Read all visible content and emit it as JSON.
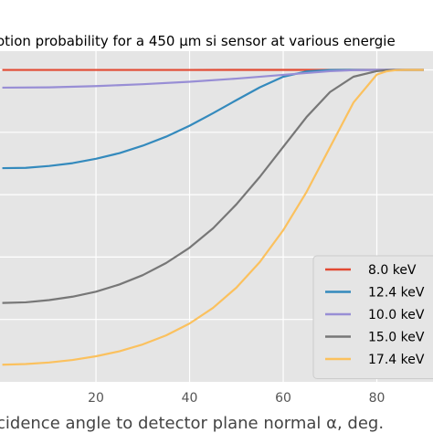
{
  "chart_data": {
    "type": "line",
    "title": "otion probability for a 450 µm si sensor at various energie",
    "xlabel": "cidence angle to detector plane normal α, deg.",
    "ylabel": "",
    "xlim": [
      -0.5,
      92
    ],
    "ylim": [
      0,
      1.06
    ],
    "grid": true,
    "legend_position": "bottom-right",
    "xticks": [
      20,
      40,
      60,
      80
    ],
    "xtick_labels": [
      "20",
      "40",
      "60",
      "80"
    ],
    "series": [
      {
        "name": "8.0 keV",
        "color": "#e24a33",
        "x": [
          0,
          10,
          20,
          30,
          40,
          50,
          60,
          70,
          80,
          85,
          90
        ],
        "y": [
          0.9998,
          0.9998,
          0.9998,
          0.9998,
          0.9998,
          0.9999,
          1.0,
          1.0,
          1.0,
          1.0,
          1.0
        ]
      },
      {
        "name": "12.4 keV",
        "color": "#348abd",
        "x": [
          0,
          5,
          10,
          15,
          20,
          25,
          30,
          35,
          40,
          45,
          50,
          55,
          60,
          65,
          70,
          75,
          80,
          85,
          90
        ],
        "y": [
          0.685,
          0.686,
          0.692,
          0.701,
          0.715,
          0.733,
          0.757,
          0.786,
          0.821,
          0.861,
          0.903,
          0.944,
          0.978,
          0.995,
          0.9995,
          1.0,
          1.0,
          1.0,
          1.0
        ]
      },
      {
        "name": "10.0 keV",
        "color": "#988ed5",
        "x": [
          0,
          10,
          20,
          30,
          40,
          50,
          60,
          65,
          70,
          75,
          80,
          85,
          90
        ],
        "y": [
          0.943,
          0.944,
          0.948,
          0.954,
          0.962,
          0.972,
          0.984,
          0.99,
          0.996,
          0.999,
          1.0,
          1.0,
          1.0
        ]
      },
      {
        "name": "15.0 keV",
        "color": "#777777",
        "x": [
          0,
          5,
          10,
          15,
          20,
          25,
          30,
          35,
          40,
          45,
          50,
          55,
          60,
          65,
          70,
          75,
          80,
          82,
          85,
          90
        ],
        "y": [
          0.253,
          0.255,
          0.262,
          0.273,
          0.289,
          0.312,
          0.342,
          0.381,
          0.43,
          0.492,
          0.569,
          0.657,
          0.753,
          0.849,
          0.929,
          0.978,
          0.996,
          0.999,
          1.0,
          1.0
        ]
      },
      {
        "name": "17.4 keV",
        "color": "#fbc15e",
        "x": [
          0,
          5,
          10,
          15,
          20,
          25,
          30,
          35,
          40,
          45,
          50,
          55,
          60,
          65,
          70,
          75,
          80,
          82,
          84,
          86,
          88,
          90
        ],
        "y": [
          0.055,
          0.057,
          0.062,
          0.07,
          0.082,
          0.098,
          0.12,
          0.149,
          0.187,
          0.237,
          0.302,
          0.384,
          0.486,
          0.609,
          0.752,
          0.895,
          0.985,
          0.995,
          0.999,
          1.0,
          1.0,
          1.0
        ]
      }
    ]
  },
  "colors": {
    "background": "#ffffff",
    "plot_background": "#e5e5e5",
    "grid": "#ffffff",
    "legend_background": "#e5e5e5",
    "legend_border": "#cccccc"
  }
}
